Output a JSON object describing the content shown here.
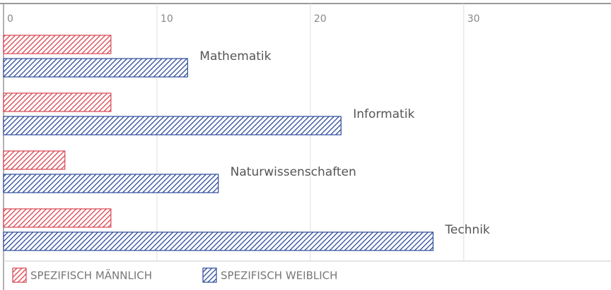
{
  "chart_data": {
    "type": "bar",
    "orientation": "horizontal",
    "categories": [
      "Mathematik",
      "Informatik",
      "Naturwissenschaften",
      "Technik"
    ],
    "series": [
      {
        "name": "SPEZIFISCH MÄNNLICH",
        "color": "#d9434f",
        "values": [
          7,
          7,
          4,
          7
        ]
      },
      {
        "name": "SPEZIFISCH WEIBLICH",
        "color": "#2b4a9a",
        "values": [
          12,
          22,
          14,
          28
        ]
      }
    ],
    "xlim": [
      0,
      39.6
    ],
    "xticks": [
      0,
      10,
      20,
      30
    ],
    "grid": true,
    "legend": "bottom-left"
  }
}
